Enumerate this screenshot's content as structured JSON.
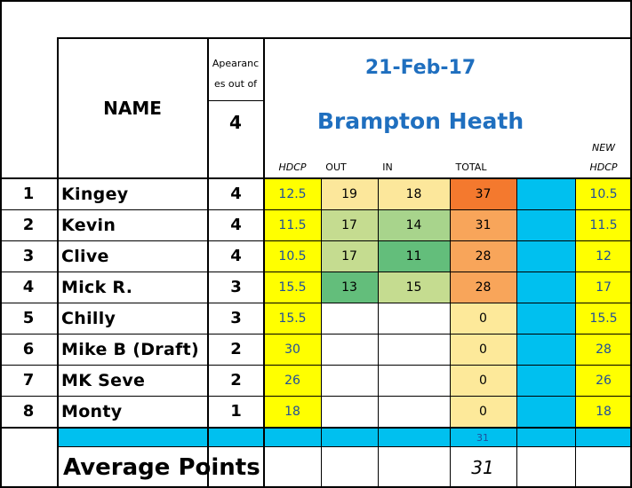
{
  "header": {
    "name_label": "NAME",
    "appearances_label_1": "Apearanc",
    "appearances_label_2": "es out of",
    "appearances_total": "4",
    "date": "21-Feb-17",
    "course": "Brampton Heath",
    "col_hdcp": "HDCP",
    "col_out": "OUT",
    "col_in": "IN",
    "col_total": "TOTAL",
    "col_new_1": "NEW",
    "col_new_2": "HDCP"
  },
  "rows": [
    {
      "rank": "1",
      "name": "Kingey",
      "apps": "4",
      "hdcp": "12.5",
      "out": "19",
      "in": "18",
      "total": "37",
      "new_hdcp": "10.5"
    },
    {
      "rank": "2",
      "name": "Kevin",
      "apps": "4",
      "hdcp": "11.5",
      "out": "17",
      "in": "14",
      "total": "31",
      "new_hdcp": "11.5"
    },
    {
      "rank": "3",
      "name": "Clive",
      "apps": "4",
      "hdcp": "10.5",
      "out": "17",
      "in": "11",
      "total": "28",
      "new_hdcp": "12"
    },
    {
      "rank": "4",
      "name": "Mick R.",
      "apps": "3",
      "hdcp": "15.5",
      "out": "13",
      "in": "15",
      "total": "28",
      "new_hdcp": "17"
    },
    {
      "rank": "5",
      "name": "Chilly",
      "apps": "3",
      "hdcp": "15.5",
      "out": "",
      "in": "",
      "total": "0",
      "new_hdcp": "15.5"
    },
    {
      "rank": "6",
      "name": "Mike B (Draft)",
      "apps": "2",
      "hdcp": "30",
      "out": "",
      "in": "",
      "total": "0",
      "new_hdcp": "28"
    },
    {
      "rank": "7",
      "name": "MK Seve",
      "apps": "2",
      "hdcp": "26",
      "out": "",
      "in": "",
      "total": "0",
      "new_hdcp": "26"
    },
    {
      "rank": "8",
      "name": "Monty",
      "apps": "1",
      "hdcp": "18",
      "out": "",
      "in": "",
      "total": "0",
      "new_hdcp": "18"
    }
  ],
  "summary": {
    "band_total": "31",
    "average_label": "Average Points",
    "average_value": "31"
  },
  "colors": {
    "yellow": "#ffff00",
    "cyan": "#00c0ef",
    "total_orange_dark": "#f4792e",
    "total_orange": "#f8a55a",
    "total_pale": "#fde99a",
    "green_dark": "#63be7b",
    "green_mid": "#a8d48c",
    "green_light": "#c5dc90",
    "pale_yellow": "#fce79b"
  }
}
